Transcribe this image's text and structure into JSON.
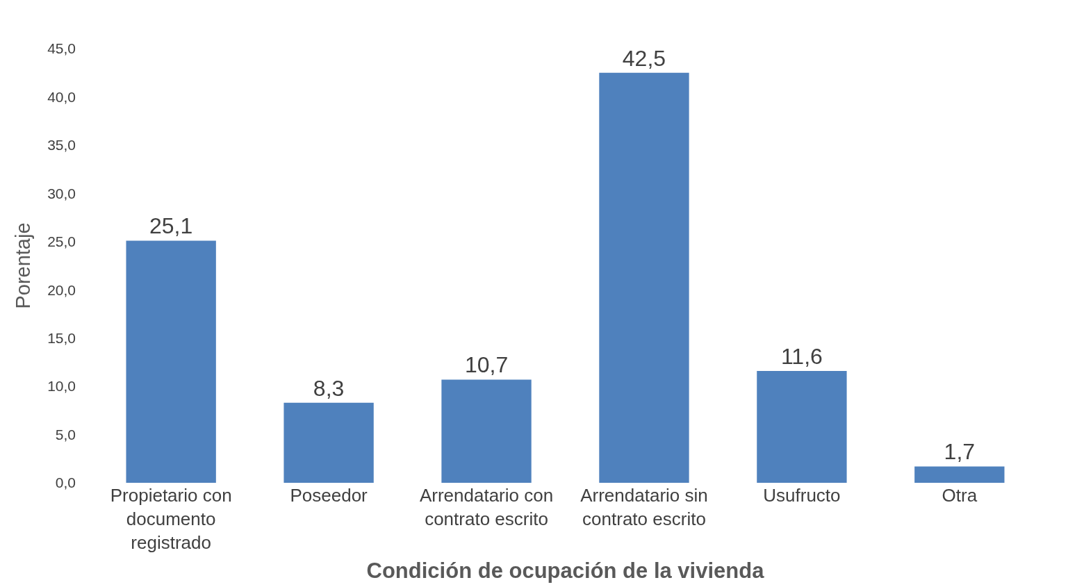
{
  "chart_data": {
    "type": "bar",
    "xlabel": "Condición de ocupación de la vivienda",
    "ylabel": "Porentaje",
    "categories": [
      "Propietario con documento registrado",
      "Poseedor",
      "Arrendatario con contrato escrito",
      "Arrendatario sin contrato escrito",
      "Usufructo",
      "Otra"
    ],
    "values": [
      25.1,
      8.3,
      10.7,
      42.5,
      11.6,
      1.7
    ],
    "value_labels": [
      "25,1",
      "8,3",
      "10,7",
      "42,5",
      "11,6",
      "1,7"
    ],
    "color": "#4f81bd",
    "ylim": [
      0,
      45
    ],
    "yticks": [
      {
        "value": 0,
        "label": "0,0"
      },
      {
        "value": 5,
        "label": "5,0"
      },
      {
        "value": 10,
        "label": "10,0"
      },
      {
        "value": 15,
        "label": "15,0"
      },
      {
        "value": 20,
        "label": "20,0"
      },
      {
        "value": 25,
        "label": "25,0"
      },
      {
        "value": 30,
        "label": "30,0"
      },
      {
        "value": 35,
        "label": "35,0"
      },
      {
        "value": 40,
        "label": "40,0"
      },
      {
        "value": 45,
        "label": "45,0"
      }
    ]
  }
}
